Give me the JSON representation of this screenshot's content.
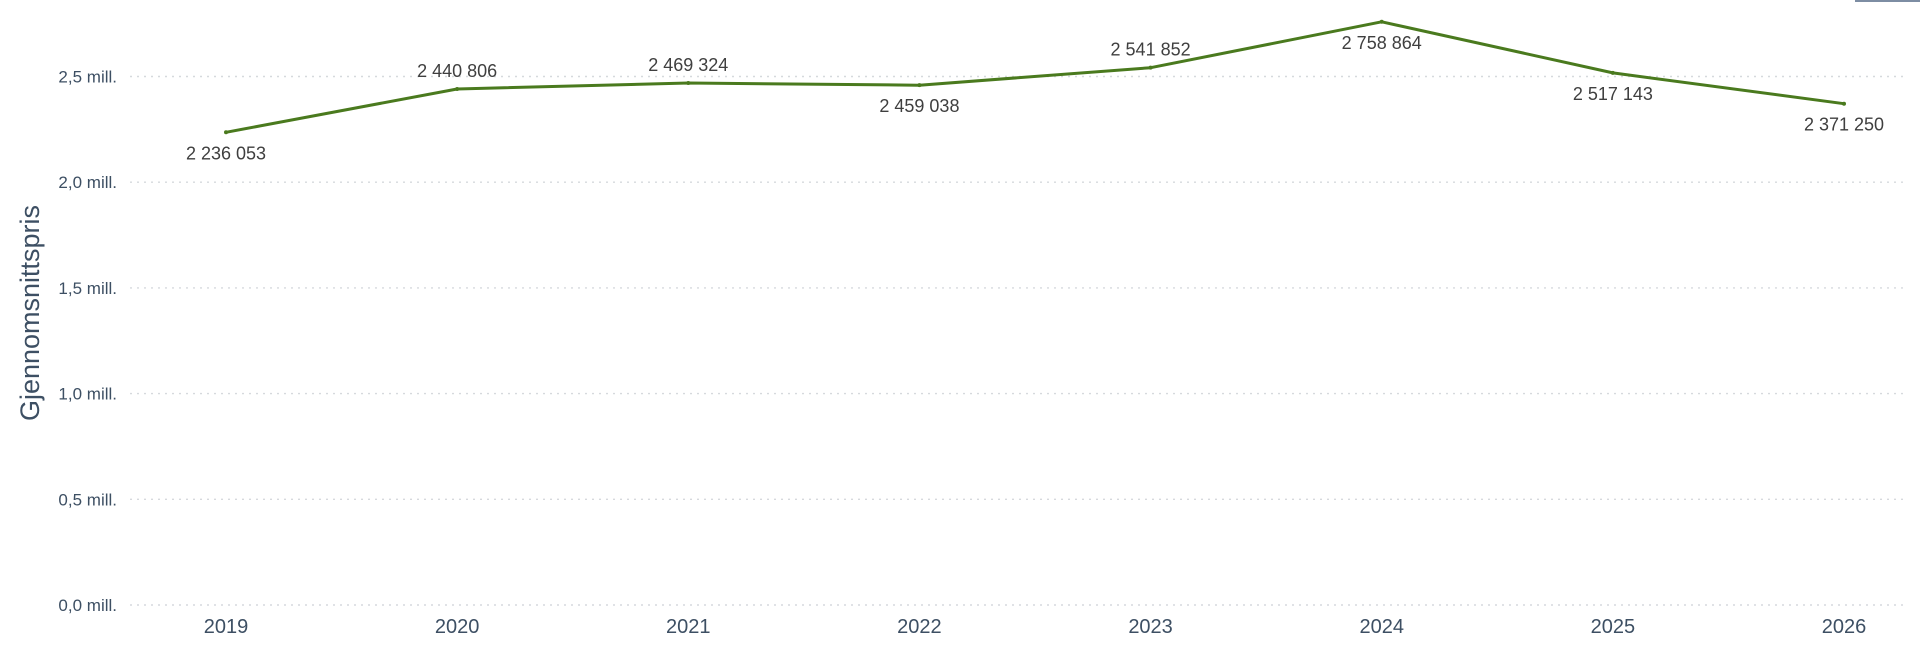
{
  "chart_data": {
    "type": "line",
    "title": "",
    "xlabel": "",
    "ylabel": "Gjennomsnittspris",
    "categories": [
      "2019",
      "2020",
      "2021",
      "2022",
      "2023",
      "2024",
      "2025",
      "2026"
    ],
    "series": [
      {
        "values": [
          2236053,
          2440806,
          2469324,
          2459038,
          2541852,
          2758864,
          2517143,
          2371250
        ],
        "labels": [
          "2 236 053",
          "2 440 806",
          "2 469 324",
          "2 459 038",
          "2 541 852",
          "2 758 864",
          "2 517 143",
          "2 371 250"
        ]
      }
    ],
    "ylim": [
      0,
      2800000
    ],
    "yticks": [
      {
        "value": 0,
        "label": "0,0 mill."
      },
      {
        "value": 500000,
        "label": "0,5 mill."
      },
      {
        "value": 1000000,
        "label": "1,0 mill."
      },
      {
        "value": 1500000,
        "label": "1,5 mill."
      },
      {
        "value": 2000000,
        "label": "2,0 mill."
      },
      {
        "value": 2500000,
        "label": "2,5 mill."
      }
    ],
    "grid": true,
    "legend": "none"
  },
  "colors": {
    "line": "#4a7a1e"
  }
}
